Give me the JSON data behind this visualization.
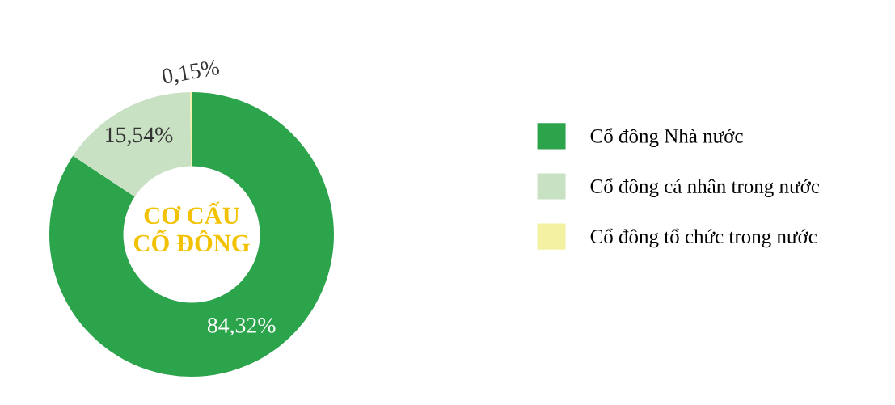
{
  "chart_data": {
    "type": "donut",
    "title": "CƠ CẤU\nCỔ ĐÔNG",
    "categories": [
      "Cổ đông Nhà nước",
      "Cổ đông cá nhân trong nước",
      "Cổ đông tổ chức trong nước"
    ],
    "values": [
      84.32,
      15.54,
      0.15
    ],
    "colors": [
      "#2ca44b",
      "#c8e1c3",
      "#f4f1a3"
    ],
    "value_labels": [
      "84,32%",
      "15,54%",
      "0,15%"
    ],
    "legend": "right"
  }
}
